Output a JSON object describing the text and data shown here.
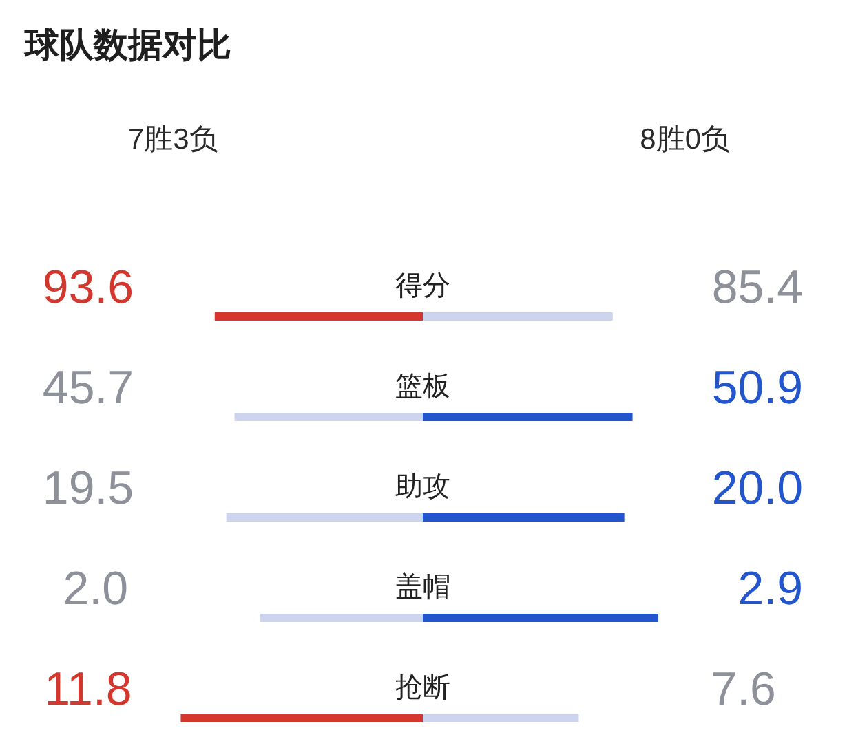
{
  "chart_data": [
    {
      "type": "other",
      "title": "球队数据对比",
      "annotations": [
        "7胜3负",
        "8胜0负"
      ]
    },
    {
      "type": "bar",
      "orientation": "horizontal",
      "stacked": true,
      "categories": [
        "得分"
      ],
      "series": [
        {
          "color": "#d4372e",
          "values": [
            93.6
          ],
          "value_labels": [
            "93.6"
          ]
        },
        {
          "color": "#cdd4ee",
          "values": [
            85.4
          ],
          "value_labels": [
            "85.4"
          ]
        }
      ]
    },
    {
      "type": "bar",
      "orientation": "horizontal",
      "stacked": true,
      "categories": [
        "篮板"
      ],
      "series": [
        {
          "color": "#cdd4ee",
          "values": [
            45.7
          ],
          "value_labels": [
            "45.7"
          ]
        },
        {
          "color": "#2356cc",
          "values": [
            50.9
          ],
          "value_labels": [
            "50.9"
          ]
        }
      ]
    },
    {
      "type": "bar",
      "orientation": "horizontal",
      "stacked": true,
      "categories": [
        "助攻"
      ],
      "series": [
        {
          "color": "#cdd4ee",
          "values": [
            19.5
          ],
          "value_labels": [
            "19.5"
          ]
        },
        {
          "color": "#2356cc",
          "values": [
            20.0
          ],
          "value_labels": [
            "20.0"
          ]
        }
      ]
    },
    {
      "type": "bar",
      "orientation": "horizontal",
      "stacked": true,
      "categories": [
        "盖帽"
      ],
      "series": [
        {
          "color": "#cdd4ee",
          "values": [
            2.0
          ],
          "value_labels": [
            "2.0"
          ]
        },
        {
          "color": "#2356cc",
          "values": [
            2.9
          ],
          "value_labels": [
            "2.9"
          ]
        }
      ]
    },
    {
      "type": "bar",
      "orientation": "horizontal",
      "stacked": true,
      "categories": [
        "抢断"
      ],
      "series": [
        {
          "color": "#d4372e",
          "values": [
            11.8
          ],
          "value_labels": [
            "11.8"
          ]
        },
        {
          "color": "#cdd4ee",
          "values": [
            7.6
          ],
          "value_labels": [
            "7.6"
          ]
        }
      ]
    }
  ]
}
